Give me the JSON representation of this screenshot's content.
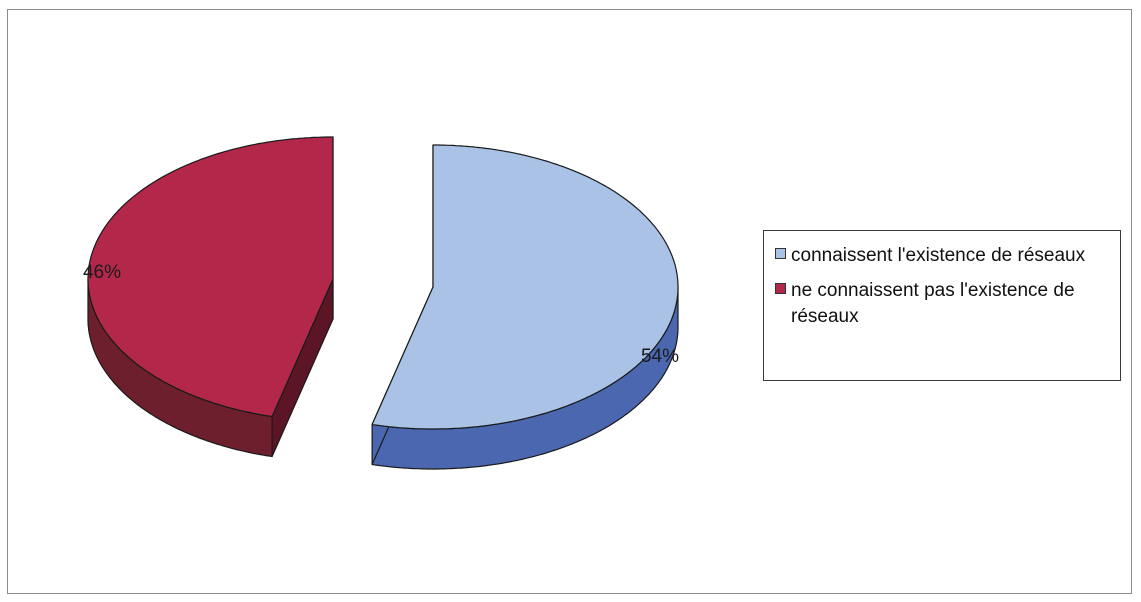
{
  "chart_data": {
    "type": "pie",
    "style": "3d-exploded",
    "title": "",
    "slices": [
      {
        "name": "connaissent l'existence de réseaux",
        "value": 54,
        "label": "54%",
        "color": "#a9c2e6",
        "side_color": "#4a67b0"
      },
      {
        "name": "ne connaissent pas l'existence de réseaux",
        "value": 46,
        "label": "46%",
        "color": "#b3284a",
        "side_color": "#6e1f2e"
      }
    ],
    "legend": {
      "placement": "right",
      "entries": [
        {
          "label": "connaissent l'existence de réseaux",
          "color": "#a9c2e6"
        },
        {
          "label": "ne connaissent pas l'existence de réseaux",
          "color": "#b3284a"
        }
      ]
    }
  }
}
